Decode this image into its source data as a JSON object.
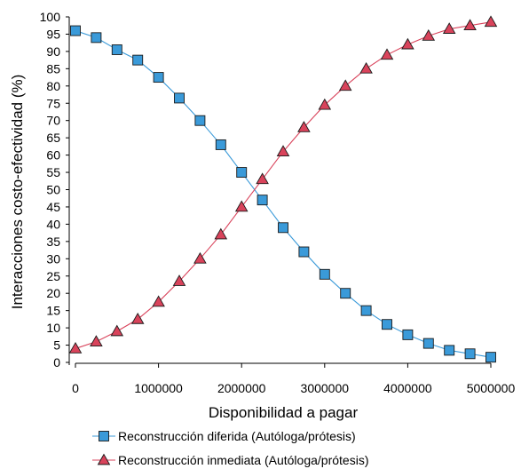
{
  "chart_data": {
    "type": "line",
    "title": "",
    "xlabel": "Disponibilidad a pagar",
    "ylabel": "Interacciones costo-efectividad (%)",
    "xlim": [
      0,
      5000000
    ],
    "ylim": [
      0,
      100
    ],
    "x_ticks": [
      "0",
      "1000000",
      "2000000",
      "3000000",
      "4000000",
      "5000000"
    ],
    "y_ticks": [
      "0",
      "5",
      "10",
      "15",
      "20",
      "25",
      "30",
      "35",
      "40",
      "45",
      "50",
      "55",
      "60",
      "65",
      "70",
      "75",
      "80",
      "85",
      "90",
      "95",
      "100"
    ],
    "grid": false,
    "legend_position": "bottom",
    "x": [
      0,
      250000,
      500000,
      750000,
      1000000,
      1250000,
      1500000,
      1750000,
      2000000,
      2250000,
      2500000,
      2750000,
      3000000,
      3250000,
      3500000,
      3750000,
      4000000,
      4250000,
      4500000,
      4750000,
      5000000
    ],
    "series": [
      {
        "name": "Reconstrucción diferida (Autóloga/prótesis)",
        "color": "#3a9ad9",
        "marker": "square",
        "values": [
          96,
          94,
          90.5,
          87.5,
          82.5,
          76.5,
          70,
          63,
          55,
          47,
          39,
          32,
          25.5,
          20,
          15,
          11,
          8,
          5.5,
          3.5,
          2.5,
          1.5
        ]
      },
      {
        "name": "Reconstrucción inmediata (Autóloga/prótesis)",
        "color": "#d9435b",
        "marker": "triangle",
        "values": [
          4,
          6,
          9,
          12.5,
          17.5,
          23.5,
          30,
          37,
          45,
          53,
          61,
          68,
          74.5,
          80,
          85,
          89,
          92,
          94.5,
          96.5,
          97.5,
          98.5
        ]
      }
    ]
  }
}
